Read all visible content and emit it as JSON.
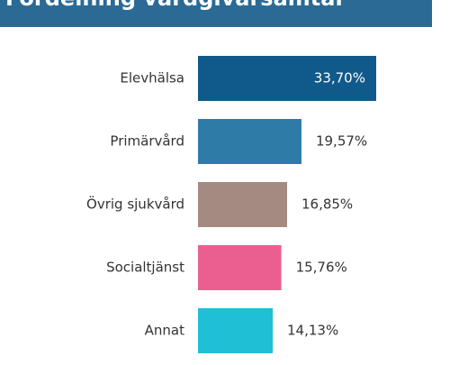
{
  "chart_data": {
    "type": "hbar",
    "title": "Fördelning vårdgivarsamtal",
    "categories": [
      "Elevhälsa",
      "Primärvård",
      "Övrig sjukvård",
      "Socialtjänst",
      "Annat"
    ],
    "values": [
      33.7,
      19.57,
      16.85,
      15.76,
      14.13
    ],
    "value_labels": [
      "33,70%",
      "19,57%",
      "16,85%",
      "15,76%",
      "14,13%"
    ],
    "colors": [
      "#0f5a8a",
      "#2e7ba8",
      "#a48a80",
      "#ea5f8f",
      "#1fbfd6"
    ]
  }
}
